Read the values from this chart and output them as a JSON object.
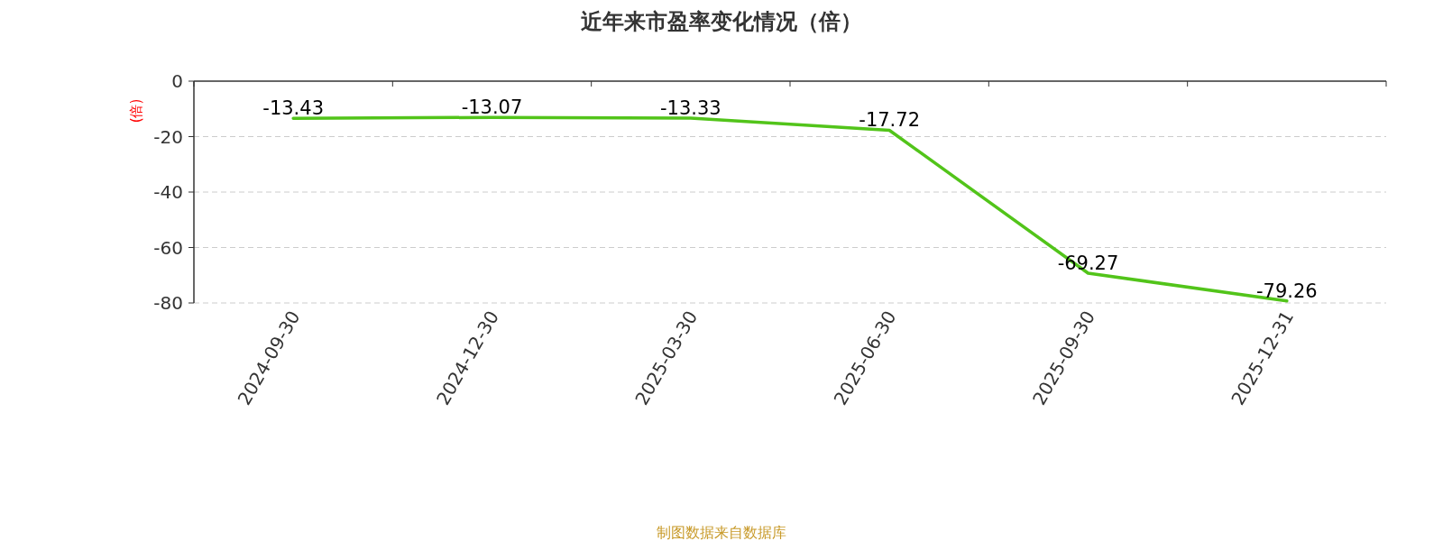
{
  "chart_data": {
    "type": "line",
    "title": "近年来市盈率变化情况（倍）",
    "ylabel": "(倍)",
    "categories": [
      "2024-09-30",
      "2024-12-30",
      "2025-03-30",
      "2025-06-30",
      "2025-09-30",
      "2025-12-31"
    ],
    "series": [
      {
        "color": "#52c41a",
        "values": [
          -13.43,
          -13.07,
          -13.33,
          -17.72,
          -69.27,
          -79.26
        ]
      }
    ],
    "ylim": [
      -80,
      0
    ],
    "yticks": [
      0,
      -20,
      -40,
      -60,
      -80
    ],
    "grid": "y",
    "data_labels": true,
    "marker": "none",
    "annotations": [
      "制图数据来自数据库"
    ]
  }
}
